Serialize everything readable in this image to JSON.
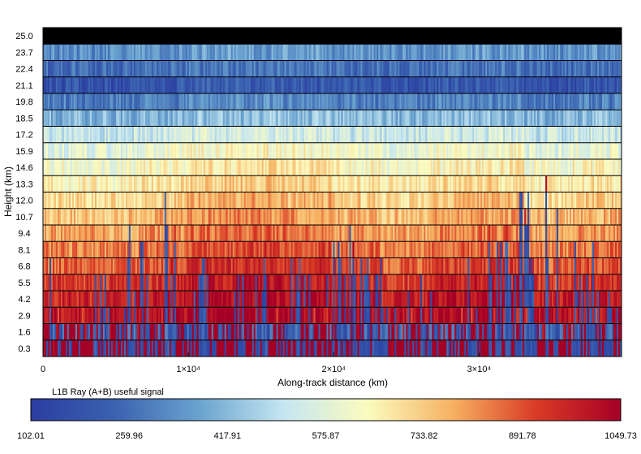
{
  "chart_data": {
    "type": "heatmap",
    "title": "",
    "xlabel": "Along-track distance (km)",
    "ylabel": "Height (km)",
    "x_ticks": [
      {
        "value": 0,
        "label": "0"
      },
      {
        "value": 10000,
        "label": "1×10⁴"
      },
      {
        "value": 20000,
        "label": "2×10⁴"
      },
      {
        "value": 30000,
        "label": "3×10⁴"
      }
    ],
    "xlim": [
      0,
      39800
    ],
    "y_levels": [
      0.3,
      1.6,
      2.9,
      4.2,
      5.5,
      6.8,
      8.1,
      9.4,
      10.7,
      12.0,
      13.3,
      14.6,
      15.9,
      17.2,
      18.5,
      19.8,
      21.1,
      22.4,
      23.7,
      25.0
    ],
    "y_tick_labels": [
      "0.3",
      "1.6",
      "2.9",
      "4.2",
      "5.5",
      "6.8",
      "8.1",
      "9.4",
      "10.7",
      "12.0",
      "13.3",
      "14.6",
      "15.9",
      "17.2",
      "18.5",
      "19.8",
      "21.1",
      "22.4",
      "23.7",
      "25.0"
    ],
    "colorbar": {
      "label": "L1B Ray (A+B) useful signal",
      "min": 102.01,
      "max": 1049.73,
      "tick_labels": [
        "102.01",
        "259.96",
        "417.91",
        "575.87",
        "733.82",
        "891.78",
        "1049.73"
      ]
    },
    "colormap": [
      "#2b3da0",
      "#3a62b0",
      "#6aa3cf",
      "#c5e6f1",
      "#fbfbbf",
      "#f6b262",
      "#d93a25",
      "#a50026"
    ],
    "grid": false
  }
}
